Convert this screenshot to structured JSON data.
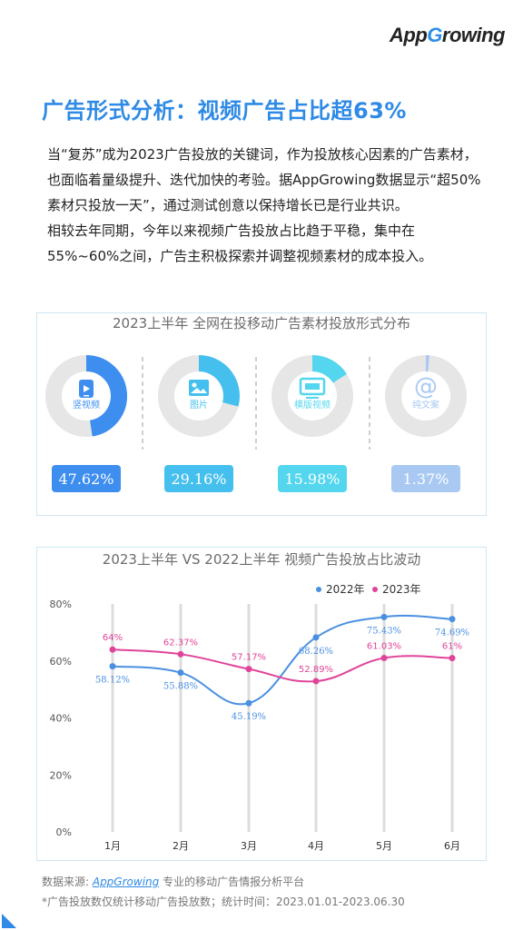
{
  "logo": {
    "text_a": "App",
    "text_g": "G",
    "text_b": "rowing"
  },
  "heading": {
    "text": "广告形式分析：视频广告占比超",
    "highlight": "63%"
  },
  "body": {
    "para1": "当“复苏”成为2023广告投放的关键词，作为投放核心因素的广告素材，也面临着量级提升、迭代加快的考验。据AppGrowing数据显示“超50%素材只投放一天”，通过测试创意以保持增长已是行业共识。",
    "para2": "相较去年同期，今年以来视频广告投放占比趋于平稳，集中在55%~60%之间，广告主积极探索并调整视频素材的成本投入。"
  },
  "donut_panel": {
    "title": "2023上半年 全网在投移动广告素材投放形式分布",
    "items": [
      {
        "label": "竖视频",
        "value_text": "47.62%",
        "value": 47.62,
        "color": "#3e8ef0",
        "icon": "phone-video-icon"
      },
      {
        "label": "图片",
        "value_text": "29.16%",
        "value": 29.16,
        "color": "#45c0ee",
        "icon": "image-icon"
      },
      {
        "label": "横版视频",
        "value_text": "15.98%",
        "value": 15.98,
        "color": "#53d6ee",
        "icon": "monitor-icon"
      },
      {
        "label": "纯文案",
        "value_text": "1.37%",
        "value": 1.37,
        "color": "#a9c9f3",
        "icon": "at-sign-icon"
      }
    ],
    "ring_color": "#e6e6e6"
  },
  "chart_data": {
    "type": "line",
    "title": "2023上半年 VS 2022上半年 视频广告投放占比波动",
    "categories": [
      "1月",
      "2月",
      "3月",
      "4月",
      "5月",
      "6月"
    ],
    "series": [
      {
        "name": "2022年",
        "color": "#4a90e2",
        "values": [
          58.12,
          55.88,
          45.19,
          68.26,
          75.43,
          74.69
        ],
        "labels": [
          "58.12%",
          "55.88%",
          "45.19%",
          "68.26%",
          "75.43%",
          "74.69%"
        ]
      },
      {
        "name": "2023年",
        "color": "#e0449a",
        "values": [
          64,
          62.37,
          57.17,
          52.89,
          61.03,
          61
        ],
        "labels": [
          "64%",
          "62.37%",
          "57.17%",
          "52.89%",
          "61.03%",
          "61%"
        ]
      }
    ],
    "y_ticks": [
      "0%",
      "20%",
      "40%",
      "60%",
      "80%"
    ],
    "ylim": [
      0,
      80
    ],
    "legend_position": "top-right",
    "grid": "vertical"
  },
  "footer": {
    "source_label": "数据来源: ",
    "source_brand": "AppGrowing",
    "source_rest": " 专业的移动广告情报分析平台",
    "note": "*广告投放数仅统计移动广告投放数；统计时间：2023.01.01-2023.06.30"
  },
  "colors": {
    "accent": "#2e8ae6"
  }
}
